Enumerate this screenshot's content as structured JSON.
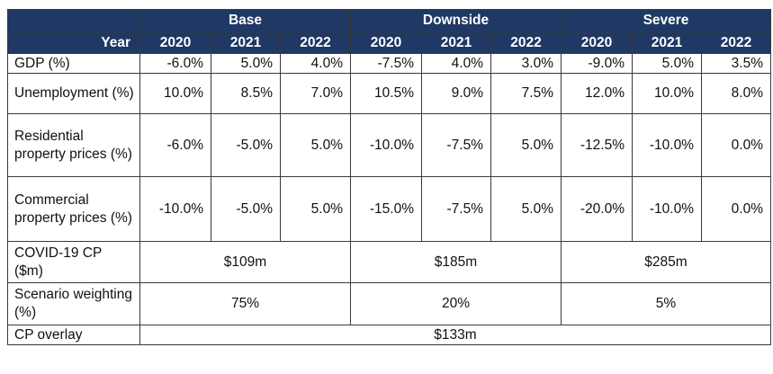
{
  "header": {
    "scenarios": [
      "Base",
      "Downside",
      "Severe"
    ],
    "year_label": "Year",
    "years": [
      "2020",
      "2021",
      "2022",
      "2020",
      "2021",
      "2022",
      "2020",
      "2021",
      "2022"
    ]
  },
  "rows": [
    {
      "label": "GDP (%)",
      "values": [
        "-6.0%",
        "5.0%",
        "4.0%",
        "-7.5%",
        "4.0%",
        "3.0%",
        "-9.0%",
        "5.0%",
        "3.5%"
      ]
    },
    {
      "label": "Unemployment (%)",
      "values": [
        "10.0%",
        "8.5%",
        "7.0%",
        "10.5%",
        "9.0%",
        "7.5%",
        "12.0%",
        "10.0%",
        "8.0%"
      ]
    },
    {
      "label": "Residential property prices (%)",
      "values": [
        "-6.0%",
        "-5.0%",
        "5.0%",
        "-10.0%",
        "-7.5%",
        "5.0%",
        "-12.5%",
        "-10.0%",
        "0.0%"
      ]
    },
    {
      "label": "Commercial property prices (%)",
      "values": [
        "-10.0%",
        "-5.0%",
        "5.0%",
        "-15.0%",
        "-7.5%",
        "5.0%",
        "-20.0%",
        "-10.0%",
        "0.0%"
      ]
    }
  ],
  "merged_rows": [
    {
      "label": "COVID-19 CP ($m)",
      "values": [
        "$109m",
        "$185m",
        "$285m"
      ]
    },
    {
      "label": "Scenario weighting (%)",
      "values": [
        "75%",
        "20%",
        "5%"
      ]
    }
  ],
  "overlay_row": {
    "label": "CP overlay",
    "value": "$133m"
  }
}
